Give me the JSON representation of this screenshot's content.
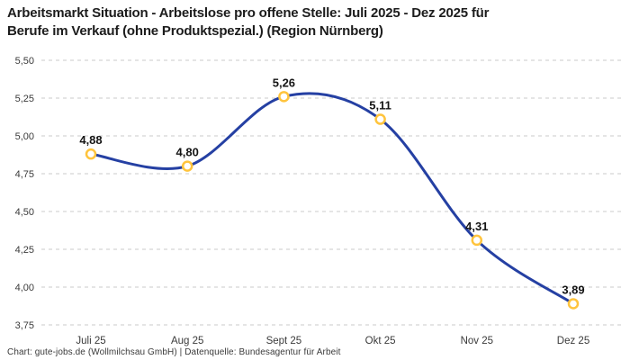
{
  "header": {
    "title_line1": "Arbeitsmarkt Situation - Arbeitslose pro offene Stelle: Juli 2025 - Dez 2025 für",
    "title_line2": "Berufe im Verkauf (ohne Produktspezial.) (Region Nürnberg)"
  },
  "footer": {
    "credit": "Chart: gute-jobs.de (Wollmilchsau GmbH) | Datenquelle: Bundesagentur für Arbeit"
  },
  "chart_data": {
    "type": "line",
    "title": "Arbeitsmarkt Situation - Arbeitslose pro offene Stelle: Juli 2025 - Dez 2025 für Berufe im Verkauf (ohne Produktspezial.) (Region Nürnberg)",
    "categories": [
      "Juli 25",
      "Aug 25",
      "Sept 25",
      "Okt 25",
      "Nov 25",
      "Dez 25"
    ],
    "values": [
      4.88,
      4.8,
      5.26,
      5.11,
      4.31,
      3.89
    ],
    "point_labels": [
      "4,88",
      "4,80",
      "5,26",
      "5,11",
      "4,31",
      "3,89"
    ],
    "xlabel": "",
    "ylabel": "",
    "ylim": [
      3.75,
      5.5
    ],
    "ytick_step": 0.25,
    "ytick_labels": [
      "3,75",
      "4,00",
      "4,25",
      "4,50",
      "4,75",
      "5,00",
      "5,25",
      "5,50"
    ],
    "grid": "horizontal-dashed",
    "legend": "none",
    "colors": {
      "line": "#2540a3",
      "marker_ring": "#ffc43d",
      "marker_fill": "#ffffff",
      "gridline": "#cbcbcb",
      "tick_text": "#3b3b3b",
      "value_label": "#141414"
    }
  }
}
